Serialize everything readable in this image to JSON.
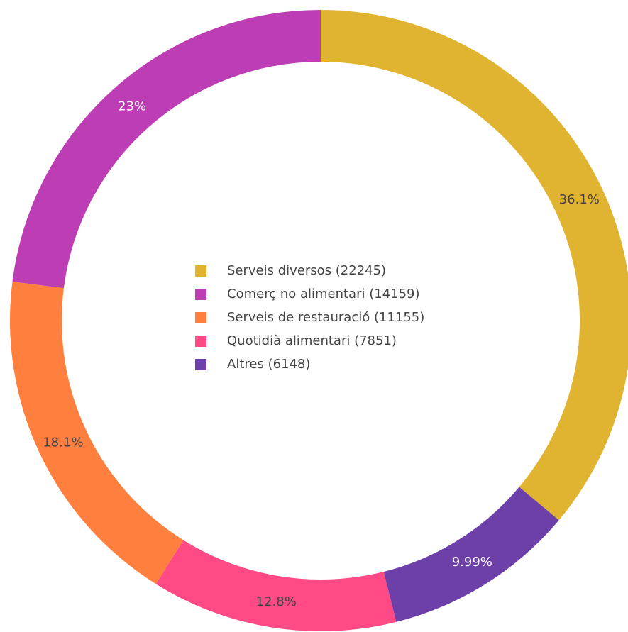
{
  "chart_data": {
    "type": "donut",
    "categories": [
      "Serveis diversos (22245)",
      "Comerç no alimentari (14159)",
      "Serveis de restauració (11155)",
      "Quotidià alimentari (7851)",
      "Altres (6148)"
    ],
    "values": [
      36.1,
      23,
      18.1,
      12.8,
      9.99
    ],
    "value_labels": [
      "36.1%",
      "23%",
      "18.1%",
      "12.8%",
      "9.99%"
    ],
    "colors": [
      "#e0b431",
      "#bc3db4",
      "#ff7f3f",
      "#ff4a85",
      "#6d3fa9"
    ],
    "label_colors": [
      "#444444",
      "#ffffff",
      "#444444",
      "#444444",
      "#ffffff"
    ],
    "legend": "center"
  }
}
